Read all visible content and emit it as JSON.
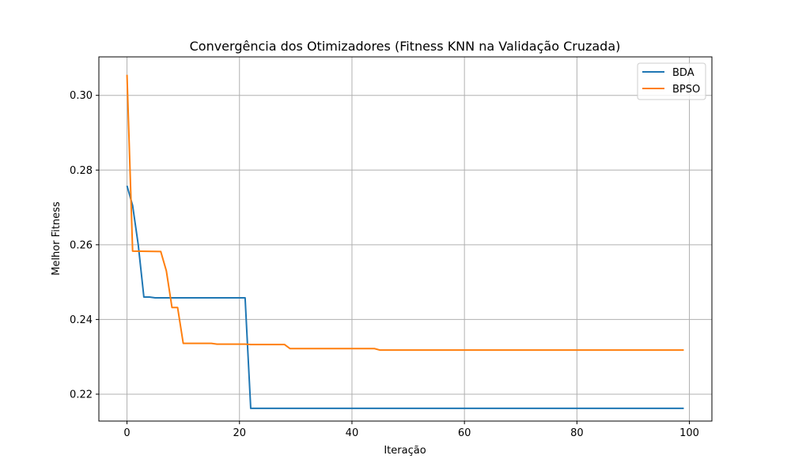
{
  "chart_data": {
    "type": "line",
    "title": "Convergência dos Otimizadores (Fitness KNN na Validação Cruzada)",
    "xlabel": "Iteração",
    "ylabel": "Melhor Fitness",
    "xlim": [
      -5,
      104
    ],
    "ylim": [
      0.2128,
      0.3103
    ],
    "xticks": [
      0,
      20,
      40,
      60,
      80,
      100
    ],
    "xtick_labels": [
      "0",
      "20",
      "40",
      "60",
      "80",
      "100"
    ],
    "yticks": [
      0.22,
      0.24,
      0.26,
      0.28,
      0.3
    ],
    "ytick_labels": [
      "0.22",
      "0.24",
      "0.26",
      "0.28",
      "0.30"
    ],
    "grid": true,
    "legend_position": "top-right",
    "series": [
      {
        "name": "BDA",
        "color": "#1f77b4",
        "x": [
          0,
          1,
          2,
          3,
          4,
          5,
          21,
          22,
          99
        ],
        "y": [
          0.2758,
          0.2705,
          0.26,
          0.246,
          0.246,
          0.2458,
          0.2458,
          0.2162,
          0.2162
        ]
      },
      {
        "name": "BPSO",
        "color": "#ff7f0e",
        "x": [
          0,
          1,
          6,
          7,
          8,
          9,
          10,
          15,
          16,
          21,
          22,
          28,
          29,
          44,
          45,
          99
        ],
        "y": [
          0.3055,
          0.2583,
          0.2582,
          0.253,
          0.2432,
          0.2432,
          0.2336,
          0.2336,
          0.2334,
          0.2334,
          0.2333,
          0.2333,
          0.2322,
          0.2322,
          0.2318,
          0.2318
        ]
      }
    ]
  }
}
